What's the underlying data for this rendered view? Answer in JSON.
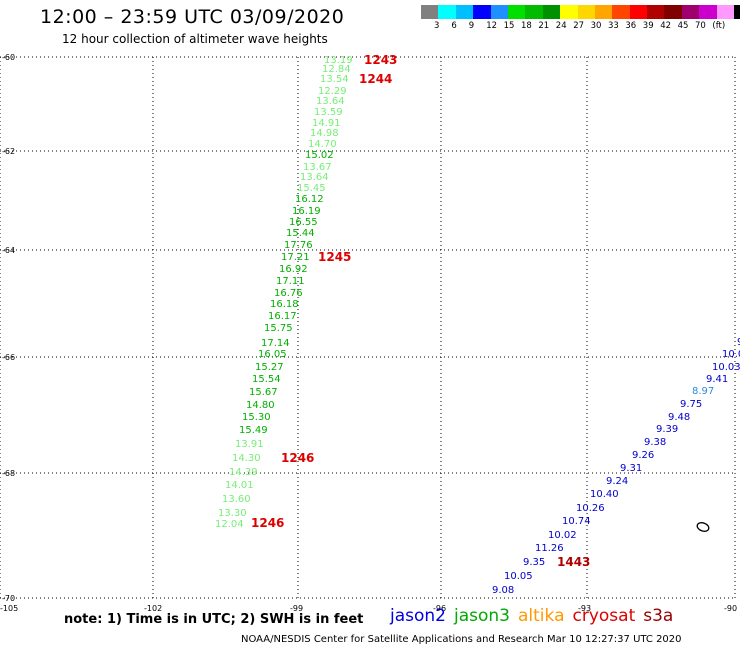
{
  "header": {
    "title": "12:00 – 23:59 UTC 03/09/2020",
    "subtitle": "12 hour collection of altimeter wave heights"
  },
  "colorbar": {
    "colors": [
      "#808080",
      "#00ffff",
      "#00bfff",
      "#0000ff",
      "#1e90ff",
      "#00e000",
      "#00bb00",
      "#009000",
      "#ffff00",
      "#ffd700",
      "#ffa500",
      "#ff4500",
      "#ff0000",
      "#b00000",
      "#800000",
      "#a0006e",
      "#cc00cc",
      "#ff99ff",
      "#000000"
    ],
    "labels": [
      "3",
      "6",
      "9",
      "12",
      "15",
      "18",
      "21",
      "24",
      "27",
      "30",
      "33",
      "36",
      "39",
      "42",
      "45",
      "70",
      "(ft)"
    ]
  },
  "axes": {
    "lat_labels": [
      "-60",
      "-62",
      "-64",
      "-66",
      "-68",
      "-70"
    ],
    "lon_labels": [
      "-105",
      "-102",
      "-99",
      "-96",
      "-93",
      "-90"
    ]
  },
  "tracks": {
    "jason3": {
      "color": "#00b000",
      "light_color": "#77ee77",
      "values": [
        "13.19",
        "12.84",
        "13.54",
        "12.29",
        "13.64",
        "13.59",
        "14.91",
        "14.98",
        "14.70",
        "15.02",
        "13.67",
        "13.64",
        "15.45",
        "16.12",
        "16.19",
        "16.55",
        "15.44",
        "17.76",
        "17.21",
        "16.92",
        "17.11",
        "16.76",
        "16.18",
        "16.17",
        "15.75",
        "17.14",
        "16.05",
        "15.27",
        "15.54",
        "15.67",
        "14.80",
        "15.30",
        "15.49",
        "13.91",
        "14.30",
        "14.39",
        "14.01",
        "13.60",
        "13.30",
        "12.04"
      ],
      "pass_labels": [
        "1243",
        "1244",
        "1245",
        "1246",
        "1246"
      ]
    },
    "jason2": {
      "color": "#0000cc",
      "values": [
        "9",
        "10.0",
        "10.03",
        "9.41",
        "8.97",
        "9.75",
        "9.48",
        "9.39",
        "9.38",
        "9.26",
        "9.31",
        "9.24",
        "10.40",
        "10.26",
        "10.74",
        "10.02",
        "11.26",
        "9.35",
        "10.05",
        "9.08"
      ],
      "pass_labels": [
        "1443"
      ]
    }
  },
  "pass_label_color": "#dd0000",
  "satellites": [
    {
      "name": "jason2",
      "color": "#0000dd"
    },
    {
      "name": "jason3",
      "color": "#00aa00"
    },
    {
      "name": "altika",
      "color": "#ff9900"
    },
    {
      "name": "cryosat",
      "color": "#dd0000"
    },
    {
      "name": "s3a",
      "color": "#990000"
    }
  ],
  "note": "note: 1) Time is in UTC; 2) SWH is in feet",
  "footer": "NOAA/NESDIS Center for Satellite Applications and Research   Mar 10 12:27:37 UTC 2020"
}
